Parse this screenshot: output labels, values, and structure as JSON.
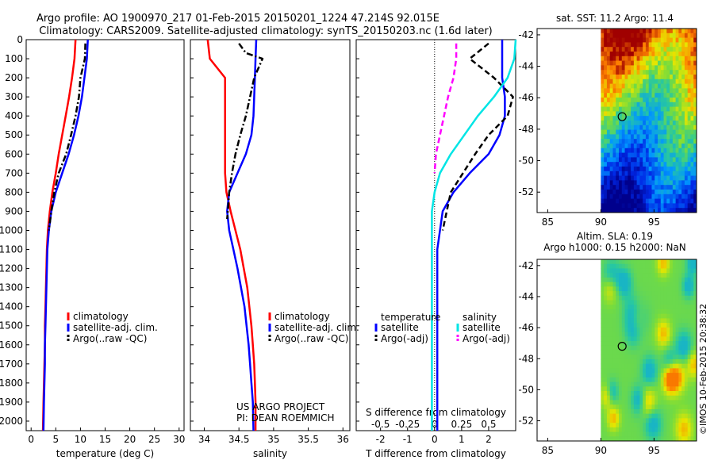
{
  "header": {
    "line1": "Argo profile: AO 1900970_217 01-Feb-2015 20150201_1224 47.214S 92.015E",
    "line2": "Climatology: CARS2009. Satellite-adjusted climatology: synTS_20150203.nc (1.6d later)"
  },
  "colors": {
    "climatology": "#ff0000",
    "satellite": "#0000ff",
    "argo": "#000000",
    "sal_satellite": "#00e5e5",
    "sal_argo": "#ff00ff"
  },
  "chart_data": [
    {
      "type": "line",
      "id": "temperature",
      "xlabel": "temperature (deg C)",
      "xlim": [
        -1,
        31
      ],
      "ylim": [
        2050,
        0
      ],
      "xticks": [
        "0",
        "5",
        "10",
        "15",
        "20",
        "25",
        "30"
      ],
      "xtick_values": [
        0,
        5,
        10,
        15,
        20,
        25,
        30
      ],
      "yticks": [
        "0",
        "100",
        "200",
        "300",
        "400",
        "500",
        "600",
        "700",
        "800",
        "900",
        "1000",
        "1100",
        "1200",
        "1300",
        "1400",
        "1500",
        "1600",
        "1700",
        "1800",
        "1900",
        "2000"
      ],
      "ytick_values": [
        0,
        100,
        200,
        300,
        400,
        500,
        600,
        700,
        800,
        900,
        1000,
        1100,
        1200,
        1300,
        1400,
        1500,
        1600,
        1700,
        1800,
        1900,
        2000
      ],
      "series": [
        {
          "name": "climatology",
          "style": "solid",
          "x": [
            9.0,
            8.8,
            8.3,
            7.7,
            7.0,
            6.3,
            5.6,
            5.0,
            4.3,
            3.8,
            3.4,
            3.2,
            3.1,
            3.0,
            2.9,
            2.8,
            2.8,
            2.7,
            2.6,
            2.5,
            2.4
          ],
          "y": [
            0,
            100,
            200,
            300,
            400,
            500,
            600,
            700,
            800,
            900,
            1000,
            1100,
            1200,
            1300,
            1400,
            1500,
            1600,
            1700,
            1800,
            1900,
            2050
          ]
        },
        {
          "name": "satellite-adj. clim.",
          "style": "solid",
          "x": [
            11.5,
            11.3,
            10.8,
            10.3,
            9.6,
            8.7,
            7.6,
            6.3,
            5.0,
            4.1,
            3.6,
            3.3,
            3.2,
            3.1,
            3.0,
            2.9,
            2.8,
            2.8,
            2.7,
            2.6,
            2.5
          ],
          "y": [
            0,
            100,
            200,
            300,
            400,
            500,
            600,
            700,
            800,
            900,
            1000,
            1100,
            1200,
            1300,
            1400,
            1500,
            1600,
            1700,
            1800,
            1900,
            2050
          ]
        },
        {
          "name": "Argo(..raw -QC)",
          "style": "dashdot",
          "x": [
            11.0,
            10.9,
            10.0,
            9.7,
            9.0,
            8.1,
            7.1,
            5.6,
            4.7,
            4.1,
            3.6
          ],
          "y": [
            20,
            100,
            200,
            300,
            400,
            500,
            600,
            700,
            800,
            900,
            1000
          ]
        }
      ],
      "legend": [
        "climatology",
        "satellite-adj. clim.",
        "Argo(..raw -QC)"
      ]
    },
    {
      "type": "line",
      "id": "salinity",
      "xlabel": "salinity",
      "xlim": [
        33.8,
        36.1
      ],
      "ylim": [
        2050,
        0
      ],
      "xticks": [
        "34",
        "34.5",
        "35",
        "35.5",
        "36"
      ],
      "xtick_values": [
        34,
        34.5,
        35,
        35.5,
        36
      ],
      "series": [
        {
          "name": "climatology",
          "style": "solid",
          "x": [
            34.05,
            34.08,
            34.3,
            34.3,
            34.3,
            34.3,
            34.3,
            34.3,
            34.32,
            34.38,
            34.45,
            34.52,
            34.57,
            34.62,
            34.65,
            34.68,
            34.7,
            34.72,
            34.73,
            34.74,
            34.74
          ],
          "y": [
            0,
            100,
            200,
            300,
            400,
            500,
            600,
            700,
            800,
            900,
            1000,
            1100,
            1200,
            1300,
            1400,
            1500,
            1600,
            1700,
            1800,
            1900,
            2050
          ]
        },
        {
          "name": "satellite-adj. clim.",
          "style": "solid",
          "x": [
            34.75,
            34.74,
            34.73,
            34.72,
            34.71,
            34.68,
            34.6,
            34.48,
            34.36,
            34.33,
            34.36,
            34.42,
            34.48,
            34.53,
            34.58,
            34.61,
            34.64,
            34.66,
            34.68,
            34.7,
            34.71
          ],
          "y": [
            0,
            100,
            200,
            300,
            400,
            500,
            600,
            700,
            800,
            900,
            1000,
            1100,
            1200,
            1300,
            1400,
            1500,
            1600,
            1700,
            1800,
            1900,
            2050
          ]
        },
        {
          "name": "Argo(..raw -QC)",
          "style": "dashdot",
          "x": [
            34.5,
            34.6,
            34.84,
            34.72,
            34.66,
            34.6,
            34.52,
            34.45,
            34.4,
            34.36,
            34.34,
            34.33
          ],
          "y": [
            20,
            70,
            100,
            200,
            300,
            400,
            500,
            600,
            700,
            800,
            900,
            940
          ]
        }
      ],
      "legend": [
        "climatology",
        "satellite-adj. clim.",
        "Argo(..raw -QC)"
      ],
      "annotation": [
        "US ARGO PROJECT",
        "PI: DEAN ROEMMICH"
      ]
    },
    {
      "type": "line",
      "id": "difference",
      "xlabel": "T difference from climatology",
      "xlabel_top": "S difference from climatology",
      "xlim": [
        -2.9,
        3.0
      ],
      "ylim": [
        2050,
        0
      ],
      "xticks": [
        "-2",
        "-1",
        "0",
        "1",
        "2"
      ],
      "xtick_values": [
        -2,
        -1,
        0,
        1,
        2
      ],
      "xticks_top": [
        "-0.5",
        "-0.25",
        "0",
        "0.25",
        "0.5"
      ],
      "xtick_top_values": [
        -0.5,
        -0.25,
        0,
        0.25,
        0.5
      ],
      "series": [
        {
          "name": "temperature satellite",
          "style": "solid",
          "x": [
            2.5,
            2.5,
            2.5,
            2.6,
            2.6,
            2.4,
            2.0,
            1.3,
            0.7,
            0.3,
            0.2,
            0.1,
            0.1,
            0.1,
            0.1,
            0.1,
            0.1,
            0.1,
            0.1,
            0.1,
            0.1
          ],
          "y": [
            0,
            100,
            200,
            300,
            400,
            500,
            600,
            700,
            800,
            900,
            1000,
            1100,
            1200,
            1300,
            1400,
            1500,
            1600,
            1700,
            1800,
            1900,
            2050
          ]
        },
        {
          "name": "temperature Argo(-adj)",
          "style": "dashed",
          "x": [
            2.0,
            1.3,
            2.2,
            2.9,
            2.7,
            2.0,
            1.5,
            0.6,
            0.3
          ],
          "y": [
            20,
            100,
            200,
            300,
            400,
            500,
            600,
            800,
            1000
          ]
        },
        {
          "name": "salinity satellite",
          "style": "solid",
          "x": [
            3.0,
            2.95,
            2.7,
            2.2,
            1.6,
            1.1,
            0.6,
            0.2,
            0.0,
            -0.1,
            -0.1,
            -0.1,
            -0.1,
            -0.1,
            -0.1,
            -0.1,
            -0.1,
            -0.1,
            -0.1,
            -0.1,
            -0.1
          ],
          "y": [
            0,
            100,
            200,
            300,
            400,
            500,
            600,
            700,
            800,
            900,
            1000,
            1100,
            1200,
            1300,
            1400,
            1500,
            1600,
            1700,
            1800,
            1900,
            2050
          ]
        },
        {
          "name": "salinity Argo(-adj)",
          "style": "dashed",
          "x": [
            0.8,
            0.8,
            0.7,
            0.5,
            0.35,
            0.2,
            0.05,
            0.0
          ],
          "y": [
            20,
            100,
            200,
            300,
            400,
            500,
            600,
            700
          ]
        }
      ],
      "legend_groups": [
        {
          "title": "temperature",
          "items": [
            "satellite",
            "Argo(-adj)"
          ]
        },
        {
          "title": "salinity",
          "items": [
            "satellite",
            "Argo(-adj)"
          ]
        }
      ]
    },
    {
      "type": "heatmap",
      "id": "sst_map",
      "title": "sat. SST: 11.2 Argo: 11.4",
      "xticks": [
        "85",
        "90",
        "95"
      ],
      "xtick_values": [
        85,
        90,
        95
      ],
      "yticks": [
        "-42",
        "-44",
        "-46",
        "-48",
        "-50",
        "-52"
      ],
      "ytick_values": [
        -42,
        -44,
        -46,
        -48,
        -50,
        -52
      ],
      "xlim": [
        84,
        99
      ],
      "ylim": [
        -53.3,
        -41.6
      ],
      "data_xlim": [
        90,
        99
      ],
      "float_position": [
        92.0,
        -47.2
      ]
    },
    {
      "type": "heatmap",
      "id": "sla_map",
      "title_line1": "Altim. SLA: 0.19",
      "title_line2": "Argo h1000: 0.15 h2000: NaN",
      "xticks": [
        "85",
        "90",
        "95"
      ],
      "xtick_values": [
        85,
        90,
        95
      ],
      "yticks": [
        "-42",
        "-44",
        "-46",
        "-48",
        "-50",
        "-52"
      ],
      "ytick_values": [
        -42,
        -44,
        -46,
        -48,
        -50,
        -52
      ],
      "xlim": [
        84,
        99
      ],
      "ylim": [
        -53.3,
        -41.6
      ],
      "data_xlim": [
        90,
        99
      ],
      "float_position": [
        92.0,
        -47.2
      ]
    }
  ],
  "footer": {
    "stamp": "©IMOS 10-Feb-2015 20:38:32"
  }
}
